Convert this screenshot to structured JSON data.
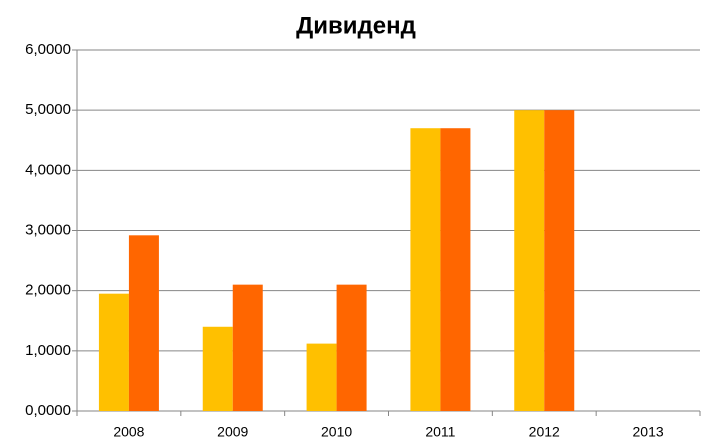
{
  "chart_data": {
    "type": "bar",
    "title": "Дивиденд",
    "categories": [
      "2008",
      "2009",
      "2010",
      "2011",
      "2012",
      "2013"
    ],
    "series": [
      {
        "color": "#ffc000",
        "values": [
          1.95,
          1.4,
          1.12,
          4.7,
          5.0,
          null
        ]
      },
      {
        "color": "#ff6600",
        "values": [
          2.92,
          2.1,
          2.1,
          4.7,
          5.0,
          null
        ]
      }
    ],
    "ylim": [
      0,
      6
    ],
    "yticks": [
      {
        "value": 0,
        "label": "0,0000"
      },
      {
        "value": 1,
        "label": "1,0000"
      },
      {
        "value": 2,
        "label": "2,0000"
      },
      {
        "value": 3,
        "label": "3,0000"
      },
      {
        "value": 4,
        "label": "4,0000"
      },
      {
        "value": 5,
        "label": "5,0000"
      },
      {
        "value": 6,
        "label": "6,0000"
      }
    ],
    "grid": true
  }
}
